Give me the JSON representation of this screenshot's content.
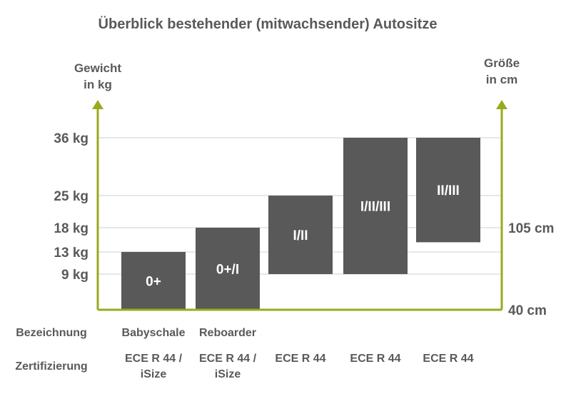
{
  "chart_data": {
    "type": "bar",
    "title": "Überblick bestehender (mitwachsender) Autositze",
    "left_axis_label": [
      "Gewicht",
      "in kg"
    ],
    "right_axis_label": [
      "Größe",
      "in cm"
    ],
    "left_ticks": [
      {
        "label": "36 kg",
        "value": 36
      },
      {
        "label": "25 kg",
        "value": 25
      },
      {
        "label": "18 kg",
        "value": 18
      },
      {
        "label": "13 kg",
        "value": 13
      },
      {
        "label": "9 kg",
        "value": 9
      }
    ],
    "right_ticks": [
      {
        "label": "105 cm",
        "value": 18
      },
      {
        "label": "40 cm",
        "value": 0
      }
    ],
    "categories": [
      "0+",
      "0+/I",
      "I/II",
      "I/II/III",
      "II/III"
    ],
    "ranges": [
      {
        "label": "0+",
        "from": 0,
        "to": 13
      },
      {
        "label": "0+/I",
        "from": 0,
        "to": 18
      },
      {
        "label": "I/II",
        "from": 9,
        "to": 25
      },
      {
        "label": "I/II/III",
        "from": 9,
        "to": 36
      },
      {
        "label": "II/III",
        "from": 15,
        "to": 36
      }
    ],
    "bar_color": "#595959",
    "axis_color": "#9aaa1e",
    "grid": true,
    "ylim": [
      0,
      36
    ]
  },
  "table": {
    "row_labels": [
      "Bezeichnung",
      "Zertifizierung"
    ],
    "bezeichnung": [
      "Babyschale",
      "Reboarder",
      "",
      "",
      ""
    ],
    "zertifizierung": [
      [
        "ECE R 44 /",
        "iSize"
      ],
      [
        "ECE R 44 /",
        "iSize"
      ],
      [
        "ECE R 44"
      ],
      [
        "ECE R 44"
      ],
      [
        "ECE R 44"
      ]
    ]
  }
}
